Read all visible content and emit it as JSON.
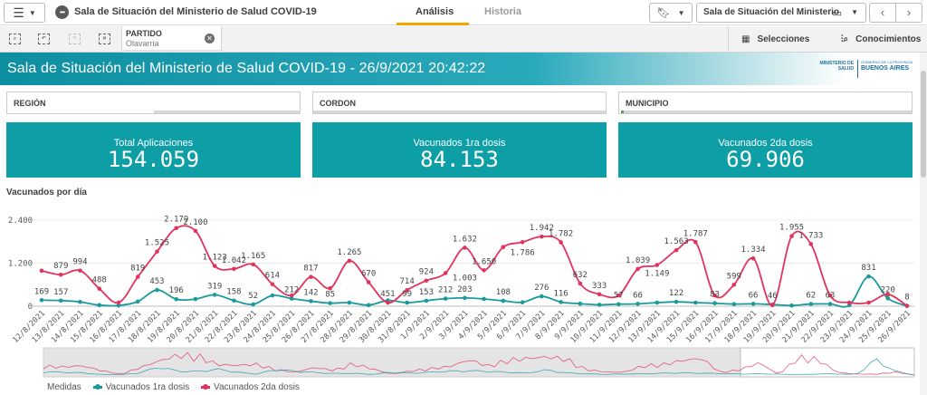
{
  "topbar": {
    "app_title": "Sala de Situación del Ministerio de Salud COVID-19",
    "tabs": [
      "Análisis",
      "Historia"
    ],
    "sheet_name": "Sala de Situación del Ministerio"
  },
  "selections_bar": {
    "chip_title": "PARTIDO",
    "chip_value": "Olavarria",
    "selecciones": "Selecciones",
    "conocimientos": "Conocimientos"
  },
  "banner": {
    "title": "Sala de Situación del Ministerio de Salud COVID-19 - 26/9/2021 20:42:22",
    "logo_left": "MINISTERIO DE SALUD",
    "logo_right_small": "GOBIERNO DE LA PROVINCIA",
    "logo_right_big": "BUENOS AIRES"
  },
  "filters": [
    {
      "label": "REGIÓN",
      "selected": false
    },
    {
      "label": "CORDON",
      "selected": false
    },
    {
      "label": "MUNICIPIO",
      "selected": true
    }
  ],
  "kpis": [
    {
      "title": "Total Aplicaciones",
      "value": "154.059"
    },
    {
      "title": "Vacunados 1ra dosis",
      "value": "84.153"
    },
    {
      "title": "Vacunados 2da dosis",
      "value": "69.906"
    }
  ],
  "chart_title": "Vacunados por día",
  "legend": {
    "heading": "Medidas"
  },
  "colors": {
    "first_dose": "#1a9a9c",
    "second_dose": "#e2335d",
    "kpi_bg": "#0e9ea6",
    "accent": "#f5a400"
  },
  "chart_data": {
    "type": "line",
    "x": [
      "12/8/2021",
      "13/8/2021",
      "14/8/2021",
      "15/8/2021",
      "16/8/2021",
      "17/8/2021",
      "18/8/2021",
      "19/8/2021",
      "20/8/2021",
      "21/8/2021",
      "22/8/2021",
      "23/8/2021",
      "24/8/2021",
      "25/8/2021",
      "26/8/2021",
      "27/8/2021",
      "28/8/2021",
      "29/8/2021",
      "30/8/2021",
      "31/8/2021",
      "1/9/2021",
      "2/9/2021",
      "3/9/2021",
      "4/9/2021",
      "5/9/2021",
      "6/9/2021",
      "7/9/2021",
      "8/9/2021",
      "9/9/2021",
      "10/9/2021",
      "11/9/2021",
      "12/9/2021",
      "13/9/2021",
      "14/9/2021",
      "15/9/2021",
      "16/9/2021",
      "17/9/2021",
      "18/9/2021",
      "19/9/2021",
      "20/9/2021",
      "21/9/2021",
      "22/9/2021",
      "23/9/2021",
      "24/9/2021",
      "25/9/2021",
      "26/9/2021"
    ],
    "series": [
      {
        "name": "Vacunados 1ra dosis",
        "values": [
          169,
          157,
          120,
          30,
          20,
          130,
          453,
          196,
          200,
          319,
          158,
          52,
          300,
          212,
          142,
          85,
          100,
          30,
          160,
          99,
          153,
          212,
          230,
          203,
          150,
          108,
          276,
          116,
          70,
          40,
          57,
          66,
          100,
          122,
          100,
          83,
          60,
          66,
          46,
          20,
          62,
          63,
          30,
          831,
          220,
          8
        ]
      },
      {
        "name": "Vacunados 2da dosis",
        "values": [
          990,
          879,
          994,
          488,
          100,
          819,
          1525,
          2179,
          2100,
          1123,
          1042,
          1165,
          614,
          300,
          817,
          500,
          1265,
          670,
          100,
          451,
          714,
          924,
          1632,
          1003,
          1650,
          1786,
          1942,
          1782,
          632,
          333,
          300,
          1039,
          1149,
          1563,
          1787,
          300,
          599,
          1334,
          30,
          1955,
          1733,
          300,
          100,
          100,
          330,
          10
        ]
      }
    ],
    "series1_labels": [
      "169",
      "157",
      "453",
      "196",
      "319",
      "158",
      "52",
      "212",
      "142",
      "85",
      "99",
      "153",
      "212",
      "203",
      "108",
      "276",
      "116",
      "57",
      "66",
      "122",
      "83",
      "66",
      "46",
      "62",
      "63",
      "831",
      "220",
      "8"
    ],
    "series2_labels": [
      "879",
      "994",
      "488",
      "819",
      "1.525",
      "2.179",
      "2.100",
      "1.123",
      "1.042",
      "1.165",
      "614",
      "817",
      "1.265",
      "670",
      "451",
      "714",
      "924",
      "1.632",
      "1.003",
      "1.650",
      "1.786",
      "1.942",
      "1.782",
      "632",
      "333",
      "1.039",
      "1.149",
      "1.563",
      "1.787",
      "599",
      "1.334",
      "1.955",
      "1.733"
    ],
    "ylim": [
      0,
      2400
    ],
    "yticks": [
      "0",
      "1.200",
      "2.400"
    ],
    "grid": true,
    "legend_position": "bottom-left"
  }
}
